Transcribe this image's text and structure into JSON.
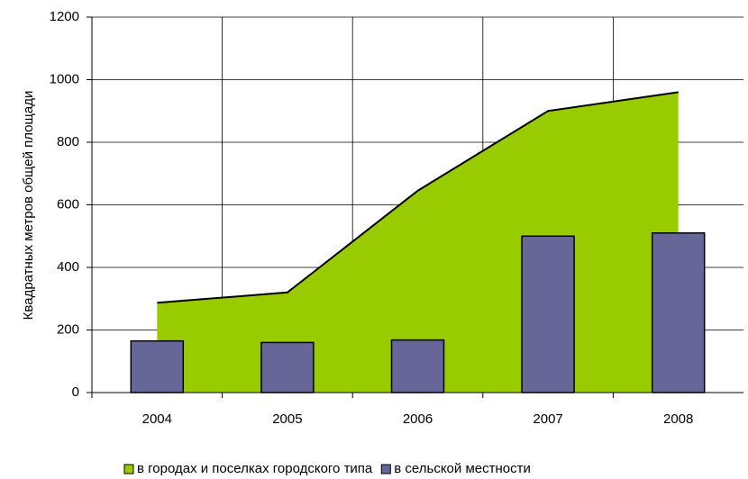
{
  "chart_data": {
    "type": "area_bar",
    "y_axis_label": "Квадратных метров общей площади",
    "categories": [
      "2004",
      "2005",
      "2006",
      "2007",
      "2008"
    ],
    "series": [
      {
        "name": "в городах и поселках городского типа",
        "type": "area",
        "color": "#99cc00",
        "values": [
          287,
          320,
          645,
          900,
          960
        ]
      },
      {
        "name": "в сельской местности",
        "type": "bar",
        "color": "#666699",
        "values": [
          165,
          160,
          168,
          500,
          510
        ]
      }
    ],
    "ylim": [
      0,
      1200
    ],
    "yticks": [
      0,
      200,
      400,
      600,
      800,
      1000,
      1200
    ],
    "grid": true,
    "legend": "bottom"
  }
}
